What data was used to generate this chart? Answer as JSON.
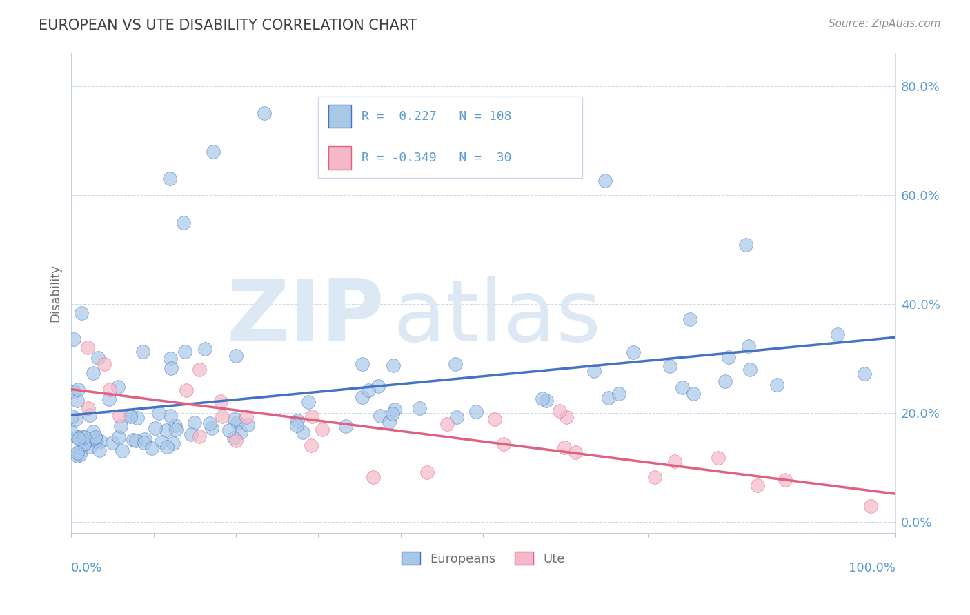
{
  "title": "EUROPEAN VS UTE DISABILITY CORRELATION CHART",
  "source": "Source: ZipAtlas.com",
  "ylabel": "Disability",
  "xlim": [
    0.0,
    1.0
  ],
  "ylim": [
    -0.02,
    0.86
  ],
  "yticks": [
    0.0,
    0.2,
    0.4,
    0.6,
    0.8
  ],
  "ytick_labels": [
    "0.0%",
    "20.0%",
    "40.0%",
    "60.0%",
    "80.0%"
  ],
  "r1": 0.227,
  "n1": 108,
  "r2": -0.349,
  "n2": 30,
  "color_european": "#a8c8e8",
  "color_ute": "#f4b8c8",
  "color_line_european": "#4472c4",
  "color_line_ute": "#e06080",
  "background_color": "#ffffff",
  "title_color": "#404040",
  "axis_color": "#707070",
  "tick_color": "#5b9bd5",
  "watermark_color": "#dce8f4",
  "grid_color": "#c8d8e8",
  "legend_box_color": "#e8f0f8"
}
